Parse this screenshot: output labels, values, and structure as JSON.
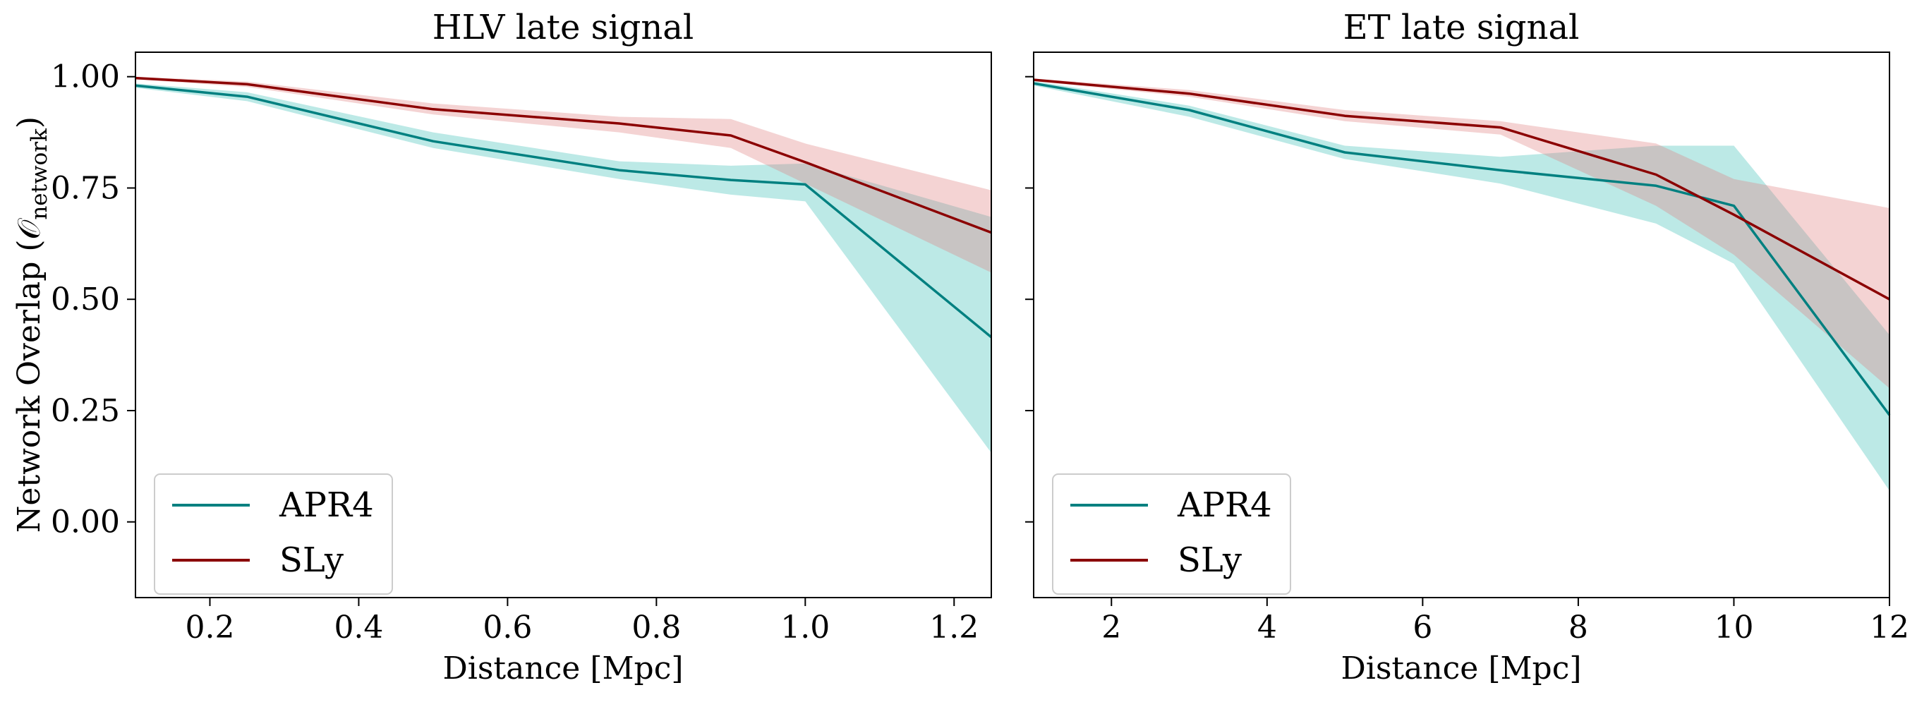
{
  "ylabel": "Network Overlap (𝒪",
  "ylabel_sub": "network",
  "ylabel_close": ")",
  "colors": {
    "APR4": "#008080",
    "SLy": "#8b0000",
    "APR4_band": "#40c0b8",
    "SLy_band": "#e08080"
  },
  "chart_data": [
    {
      "type": "line",
      "title": "HLV late signal",
      "xlabel": "Distance [Mpc]",
      "ylabel": "Network Overlap (𝒪network)",
      "xlim": [
        0.1,
        1.25
      ],
      "ylim": [
        -0.17,
        1.055
      ],
      "xticks": [
        0.2,
        0.4,
        0.6,
        0.8,
        1.0,
        1.2
      ],
      "xtick_labels": [
        "0.2",
        "0.4",
        "0.6",
        "0.8",
        "1.0",
        "1.2"
      ],
      "yticks": [
        0.0,
        0.25,
        0.5,
        0.75,
        1.0
      ],
      "ytick_labels": [
        "0.00",
        "0.25",
        "0.50",
        "0.75",
        "1.00"
      ],
      "legend_position": "lower-left",
      "series": [
        {
          "name": "APR4",
          "x": [
            0.1,
            0.25,
            0.5,
            0.75,
            0.9,
            1.0,
            1.25
          ],
          "values": [
            0.98,
            0.955,
            0.855,
            0.79,
            0.768,
            0.758,
            0.415
          ],
          "lower": [
            0.975,
            0.945,
            0.84,
            0.77,
            0.735,
            0.72,
            0.155
          ],
          "upper": [
            0.985,
            0.965,
            0.875,
            0.81,
            0.8,
            0.805,
            0.685
          ]
        },
        {
          "name": "SLy",
          "x": [
            0.1,
            0.25,
            0.5,
            0.75,
            0.9,
            1.0,
            1.25
          ],
          "values": [
            0.997,
            0.983,
            0.927,
            0.895,
            0.868,
            0.808,
            0.65
          ],
          "lower": [
            0.994,
            0.977,
            0.915,
            0.875,
            0.84,
            0.76,
            0.56
          ],
          "upper": [
            1.0,
            0.989,
            0.94,
            0.91,
            0.905,
            0.85,
            0.745
          ]
        }
      ]
    },
    {
      "type": "line",
      "title": "ET late signal",
      "xlabel": "Distance [Mpc]",
      "ylabel": "",
      "xlim": [
        1,
        12
      ],
      "ylim": [
        -0.17,
        1.055
      ],
      "xticks": [
        2,
        4,
        6,
        8,
        10,
        12
      ],
      "xtick_labels": [
        "2",
        "4",
        "6",
        "8",
        "10",
        "12"
      ],
      "yticks": [
        0.0,
        0.25,
        0.5,
        0.75,
        1.0
      ],
      "ytick_labels": [],
      "legend_position": "lower-left",
      "series": [
        {
          "name": "APR4",
          "x": [
            1,
            3,
            5,
            7,
            9,
            10,
            12
          ],
          "values": [
            0.985,
            0.925,
            0.83,
            0.79,
            0.755,
            0.71,
            0.24
          ],
          "lower": [
            0.98,
            0.91,
            0.815,
            0.76,
            0.67,
            0.58,
            0.07
          ],
          "upper": [
            0.99,
            0.935,
            0.845,
            0.82,
            0.845,
            0.845,
            0.42
          ]
        },
        {
          "name": "SLy",
          "x": [
            1,
            3,
            5,
            7,
            9,
            10,
            12
          ],
          "values": [
            0.993,
            0.962,
            0.912,
            0.886,
            0.78,
            0.69,
            0.5
          ],
          "lower": [
            0.99,
            0.955,
            0.9,
            0.87,
            0.71,
            0.6,
            0.3
          ],
          "upper": [
            0.996,
            0.97,
            0.925,
            0.9,
            0.85,
            0.77,
            0.705
          ]
        }
      ]
    }
  ]
}
